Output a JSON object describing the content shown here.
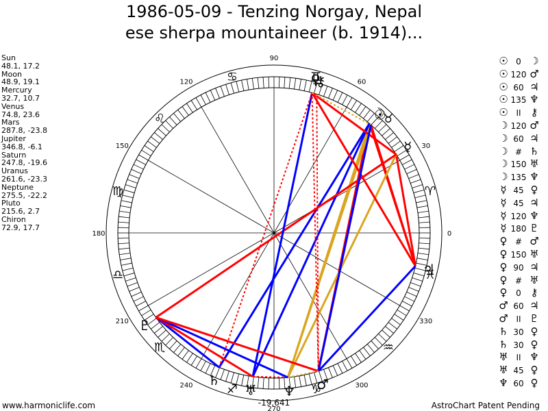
{
  "title_line1": "1986-05-09 - Tenzing Norgay, Nepal",
  "title_line2": "ese sherpa mountaineer (b. 1914)...",
  "footer_left": "www.harmoniclife.com",
  "footer_right": "AstroChart Patent Pending",
  "bottom_label": "-19,641",
  "colors": {
    "red": "#ff0000",
    "blue": "#0000ff",
    "orange": "#daa520",
    "dotted_red": "#ff0000",
    "dotted_orange": "#daa520"
  },
  "planets": [
    {
      "name": "Sun",
      "coords": "48.1, 17.2",
      "lon": 48.1,
      "glyph": "☉"
    },
    {
      "name": "Moon",
      "coords": "48.9, 19.1",
      "lon": 48.9,
      "glyph": "☽"
    },
    {
      "name": "Mercury",
      "coords": "32.7, 10.7",
      "lon": 32.7,
      "glyph": "☿"
    },
    {
      "name": "Venus",
      "coords": "74.8, 23.6",
      "lon": 74.8,
      "glyph": "♀"
    },
    {
      "name": "Mars",
      "coords": "287.8, -23.8",
      "lon": 287.8,
      "glyph": "♂"
    },
    {
      "name": "Jupiter",
      "coords": "346.8, -6.1",
      "lon": 346.8,
      "glyph": "♃"
    },
    {
      "name": "Saturn",
      "coords": "247.8, -19.6",
      "lon": 247.8,
      "glyph": "♄"
    },
    {
      "name": "Uranus",
      "coords": "261.6, -23.3",
      "lon": 261.6,
      "glyph": "♅"
    },
    {
      "name": "Neptune",
      "coords": "275.5, -22.2",
      "lon": 275.5,
      "glyph": "♆"
    },
    {
      "name": "Pluto",
      "coords": "215.6, 2.7",
      "lon": 215.6,
      "glyph": "♇"
    },
    {
      "name": "Chiron",
      "coords": "72.9, 17.7",
      "lon": 72.9,
      "glyph": "⚷"
    }
  ],
  "aspects": [
    {
      "a": "☉",
      "angle": "0",
      "b": "☽"
    },
    {
      "a": "☉",
      "angle": "120",
      "b": "♂"
    },
    {
      "a": "☉",
      "angle": "60",
      "b": "♃"
    },
    {
      "a": "☉",
      "angle": "135",
      "b": "♆"
    },
    {
      "a": "☉",
      "angle": "II",
      "b": "⚷"
    },
    {
      "a": "☽",
      "angle": "120",
      "b": "♂"
    },
    {
      "a": "☽",
      "angle": "60",
      "b": "♃"
    },
    {
      "a": "☽",
      "angle": "#",
      "b": "♄"
    },
    {
      "a": "☽",
      "angle": "150",
      "b": "♅"
    },
    {
      "a": "☽",
      "angle": "135",
      "b": "♆"
    },
    {
      "a": "☿",
      "angle": "45",
      "b": "♀"
    },
    {
      "a": "☿",
      "angle": "45",
      "b": "♃"
    },
    {
      "a": "☿",
      "angle": "120",
      "b": "♆"
    },
    {
      "a": "☿",
      "angle": "180",
      "b": "♇"
    },
    {
      "a": "♀",
      "angle": "#",
      "b": "♂"
    },
    {
      "a": "♀",
      "angle": "150",
      "b": "♅"
    },
    {
      "a": "♀",
      "angle": "90",
      "b": "♃"
    },
    {
      "a": "♀",
      "angle": "#",
      "b": "♅"
    },
    {
      "a": "♀",
      "angle": "0",
      "b": "⚷"
    },
    {
      "a": "♂",
      "angle": "60",
      "b": "♃"
    },
    {
      "a": "♂",
      "angle": "II",
      "b": "♇"
    },
    {
      "a": "♄",
      "angle": "30",
      "b": "♀"
    },
    {
      "a": "♄",
      "angle": "30",
      "b": "♀"
    },
    {
      "a": "♅",
      "angle": "II",
      "b": "♆"
    },
    {
      "a": "♅",
      "angle": "45",
      "b": "♀"
    },
    {
      "a": "♆",
      "angle": "60",
      "b": "♀"
    }
  ],
  "chart_data": {
    "type": "astrological-wheel",
    "title": "1986-05-09 - Tenzing Norgay, Nepal ese sherpa mountaineer (b. 1914)...",
    "degree_labels": [
      "0",
      "30",
      "60",
      "90",
      "120",
      "150",
      "180",
      "210",
      "240",
      "270",
      "300",
      "330"
    ],
    "signs": [
      {
        "glyph": "♈",
        "lon": 15
      },
      {
        "glyph": "♉",
        "lon": 45
      },
      {
        "glyph": "♊",
        "lon": 75
      },
      {
        "glyph": "♋",
        "lon": 105
      },
      {
        "glyph": "♌",
        "lon": 135
      },
      {
        "glyph": "♍",
        "lon": 165
      },
      {
        "glyph": "♎",
        "lon": 195
      },
      {
        "glyph": "♏",
        "lon": 225
      },
      {
        "glyph": "♐",
        "lon": 255
      },
      {
        "glyph": "♑",
        "lon": 285
      },
      {
        "glyph": "♒",
        "lon": 315
      },
      {
        "glyph": "♓",
        "lon": 345
      }
    ],
    "spokes_deg": [
      0,
      30,
      60,
      90,
      120,
      150,
      180,
      210,
      240,
      270,
      300,
      330
    ],
    "aspect_lines": [
      {
        "from": 48.1,
        "to": 287.8,
        "color": "red",
        "style": "solid"
      },
      {
        "from": 48.9,
        "to": 287.8,
        "color": "red",
        "style": "solid"
      },
      {
        "from": 48.1,
        "to": 346.8,
        "color": "red",
        "style": "solid"
      },
      {
        "from": 48.9,
        "to": 346.8,
        "color": "red",
        "style": "solid"
      },
      {
        "from": 48.1,
        "to": 275.5,
        "color": "orange",
        "style": "solid"
      },
      {
        "from": 48.9,
        "to": 275.5,
        "color": "orange",
        "style": "solid"
      },
      {
        "from": 48.9,
        "to": 247.8,
        "color": "blue",
        "style": "solid"
      },
      {
        "from": 48.9,
        "to": 261.6,
        "color": "blue",
        "style": "solid"
      },
      {
        "from": 32.7,
        "to": 74.8,
        "color": "red",
        "style": "solid"
      },
      {
        "from": 32.7,
        "to": 346.8,
        "color": "red",
        "style": "solid"
      },
      {
        "from": 32.7,
        "to": 275.5,
        "color": "orange",
        "style": "solid"
      },
      {
        "from": 32.7,
        "to": 215.6,
        "color": "red",
        "style": "solid"
      },
      {
        "from": 74.8,
        "to": 261.6,
        "color": "blue",
        "style": "solid"
      },
      {
        "from": 74.8,
        "to": 346.8,
        "color": "red",
        "style": "solid"
      },
      {
        "from": 74.8,
        "to": 287.8,
        "color": "red",
        "style": "dotted"
      },
      {
        "from": 72.9,
        "to": 287.8,
        "color": "red",
        "style": "dotted"
      },
      {
        "from": 74.8,
        "to": 247.8,
        "color": "red",
        "style": "dotted"
      },
      {
        "from": 74.8,
        "to": 48.1,
        "color": "orange",
        "style": "dotted"
      },
      {
        "from": 287.8,
        "to": 346.8,
        "color": "blue",
        "style": "solid"
      },
      {
        "from": 287.8,
        "to": 48.1,
        "color": "blue",
        "style": "solid"
      },
      {
        "from": 247.8,
        "to": 215.6,
        "color": "blue",
        "style": "solid"
      },
      {
        "from": 261.6,
        "to": 215.6,
        "color": "red",
        "style": "solid"
      },
      {
        "from": 261.6,
        "to": 275.5,
        "color": "red",
        "style": "dotted"
      },
      {
        "from": 275.5,
        "to": 215.6,
        "color": "blue",
        "style": "solid"
      },
      {
        "from": 287.8,
        "to": 215.6,
        "color": "red",
        "style": "solid"
      },
      {
        "from": 287.8,
        "to": 275.5,
        "color": "orange",
        "style": "dotted"
      }
    ]
  }
}
